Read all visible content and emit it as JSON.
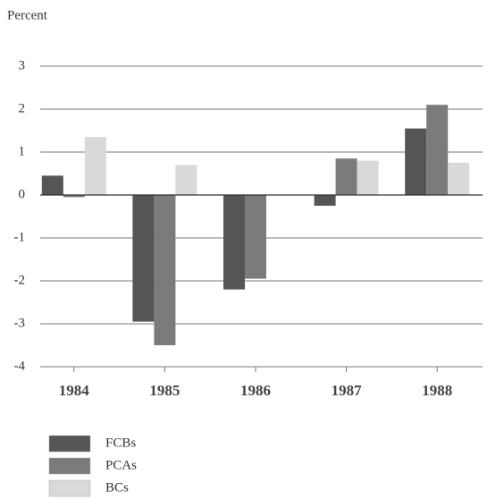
{
  "chart_data": {
    "type": "bar",
    "y_label": "Percent",
    "categories": [
      "1984",
      "1985",
      "1986",
      "1987",
      "1988"
    ],
    "series": [
      {
        "name": "FCBs",
        "color": "#555555",
        "values": [
          0.45,
          -2.95,
          -2.2,
          -0.25,
          1.55
        ]
      },
      {
        "name": "PCAs",
        "color": "#7b7b7b",
        "values": [
          -0.05,
          -3.5,
          -1.95,
          0.85,
          2.1
        ]
      },
      {
        "name": "BCs",
        "color": "#d9d9d9",
        "values": [
          1.35,
          0.7,
          null,
          0.8,
          0.75
        ]
      }
    ],
    "ylim": [
      -4,
      3
    ],
    "yticks": [
      -4,
      -3,
      -2,
      -1,
      0,
      1,
      2,
      3
    ],
    "grid": true,
    "legend": "bottom-left"
  }
}
